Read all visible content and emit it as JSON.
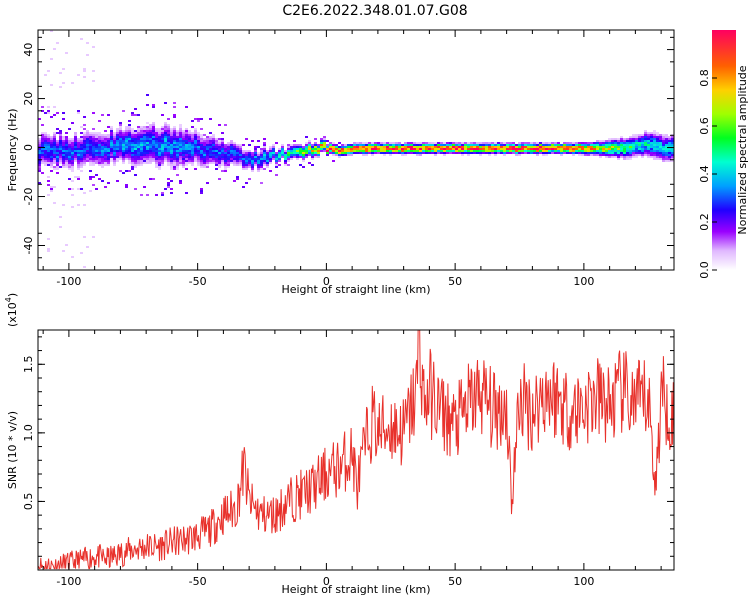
{
  "title": "C2E6.2022.348.01.07.G08",
  "chart_data": [
    {
      "type": "heatmap",
      "xlabel": "Height of straight line (km)",
      "ylabel": "Frequency (Hz)",
      "xlim": [
        -112,
        135
      ],
      "ylim": [
        -50,
        48
      ],
      "x_ticks": [
        "-100",
        "-50",
        "0",
        "50",
        "100"
      ],
      "x_tick_values": [
        -100,
        -50,
        0,
        50,
        100
      ],
      "y_ticks": [
        "-40",
        "-20",
        "0",
        "20",
        "40"
      ],
      "y_tick_values": [
        -40,
        -20,
        0,
        20,
        40
      ],
      "colorbar": {
        "label": "Normalized spectral amplitude",
        "range": [
          0,
          1
        ],
        "ticks": [
          "0.0",
          "0.2",
          "0.4",
          "0.6",
          "0.8"
        ],
        "tick_values": [
          0.0,
          0.2,
          0.4,
          0.6,
          0.8
        ]
      },
      "ridge": {
        "heights_km": [
          -112,
          -100,
          -90,
          -80,
          -70,
          -60,
          -50,
          -40,
          -30,
          -25,
          -20,
          -15,
          -10,
          -5,
          0,
          5,
          10,
          20,
          40,
          60,
          80,
          95,
          105,
          115,
          120,
          125,
          130,
          135
        ],
        "frequency_hz": [
          -1,
          -1,
          0,
          1,
          2,
          1,
          0,
          -2,
          -5,
          -4,
          -3,
          -2,
          -1,
          0,
          0,
          -1,
          0,
          0,
          0,
          0,
          0,
          0,
          0,
          0,
          1,
          2,
          0,
          0
        ],
        "amplitude": [
          0.3,
          0.3,
          0.3,
          0.35,
          0.35,
          0.35,
          0.3,
          0.3,
          0.3,
          0.35,
          0.4,
          0.5,
          0.6,
          0.7,
          0.9,
          0.9,
          0.95,
          0.95,
          0.95,
          0.95,
          0.95,
          0.9,
          0.7,
          0.55,
          0.45,
          0.4,
          0.4,
          0.4
        ],
        "spread_hz": [
          5,
          5,
          5,
          5,
          6,
          6,
          5,
          4,
          3,
          3,
          2,
          2,
          2,
          2,
          1.5,
          1.5,
          1.5,
          1.5,
          1.5,
          1.5,
          1.5,
          1.5,
          2,
          3,
          3,
          4,
          4,
          4
        ]
      }
    },
    {
      "type": "line",
      "xlabel": "Height of straight line (km)",
      "ylabel": "SNR (10 * v/v)",
      "y_multiplier": "(x10",
      "y_multiplier_exp": "4",
      "y_multiplier_close": ")",
      "xlim": [
        -112,
        135
      ],
      "ylim": [
        0,
        1.75
      ],
      "x_ticks": [
        "-100",
        "-50",
        "0",
        "50",
        "100"
      ],
      "x_tick_values": [
        -100,
        -50,
        0,
        50,
        100
      ],
      "y_ticks": [
        "0.5",
        "1.0",
        "1.5"
      ],
      "y_tick_values": [
        0.5,
        1.0,
        1.5
      ],
      "color": "#e8312b",
      "series": [
        {
          "x": [
            -112,
            -105,
            -100,
            -95,
            -90,
            -85,
            -80,
            -75,
            -70,
            -65,
            -60,
            -55,
            -50,
            -45,
            -40,
            -35,
            -32,
            -30,
            -28,
            -25,
            -20,
            -15,
            -10,
            -5,
            0,
            5,
            10,
            12,
            15,
            18,
            20,
            25,
            30,
            35,
            36,
            38,
            40,
            45,
            50,
            55,
            60,
            65,
            70,
            72,
            75,
            80,
            85,
            90,
            95,
            100,
            105,
            110,
            115,
            120,
            125,
            128,
            130,
            135
          ],
          "values": [
            0.03,
            0.03,
            0.05,
            0.07,
            0.1,
            0.08,
            0.12,
            0.15,
            0.17,
            0.17,
            0.2,
            0.22,
            0.25,
            0.3,
            0.4,
            0.45,
            0.75,
            0.5,
            0.45,
            0.4,
            0.4,
            0.5,
            0.55,
            0.6,
            0.7,
            0.75,
            0.85,
            0.6,
            0.9,
            1.1,
            1.0,
            1.05,
            1.0,
            1.3,
            1.72,
            1.2,
            1.3,
            1.15,
            1.05,
            1.2,
            1.3,
            1.15,
            1.2,
            0.5,
            1.25,
            1.15,
            1.3,
            1.25,
            1.15,
            1.2,
            1.25,
            1.2,
            1.3,
            1.2,
            1.25,
            0.6,
            1.3,
            1.1
          ]
        }
      ]
    }
  ]
}
